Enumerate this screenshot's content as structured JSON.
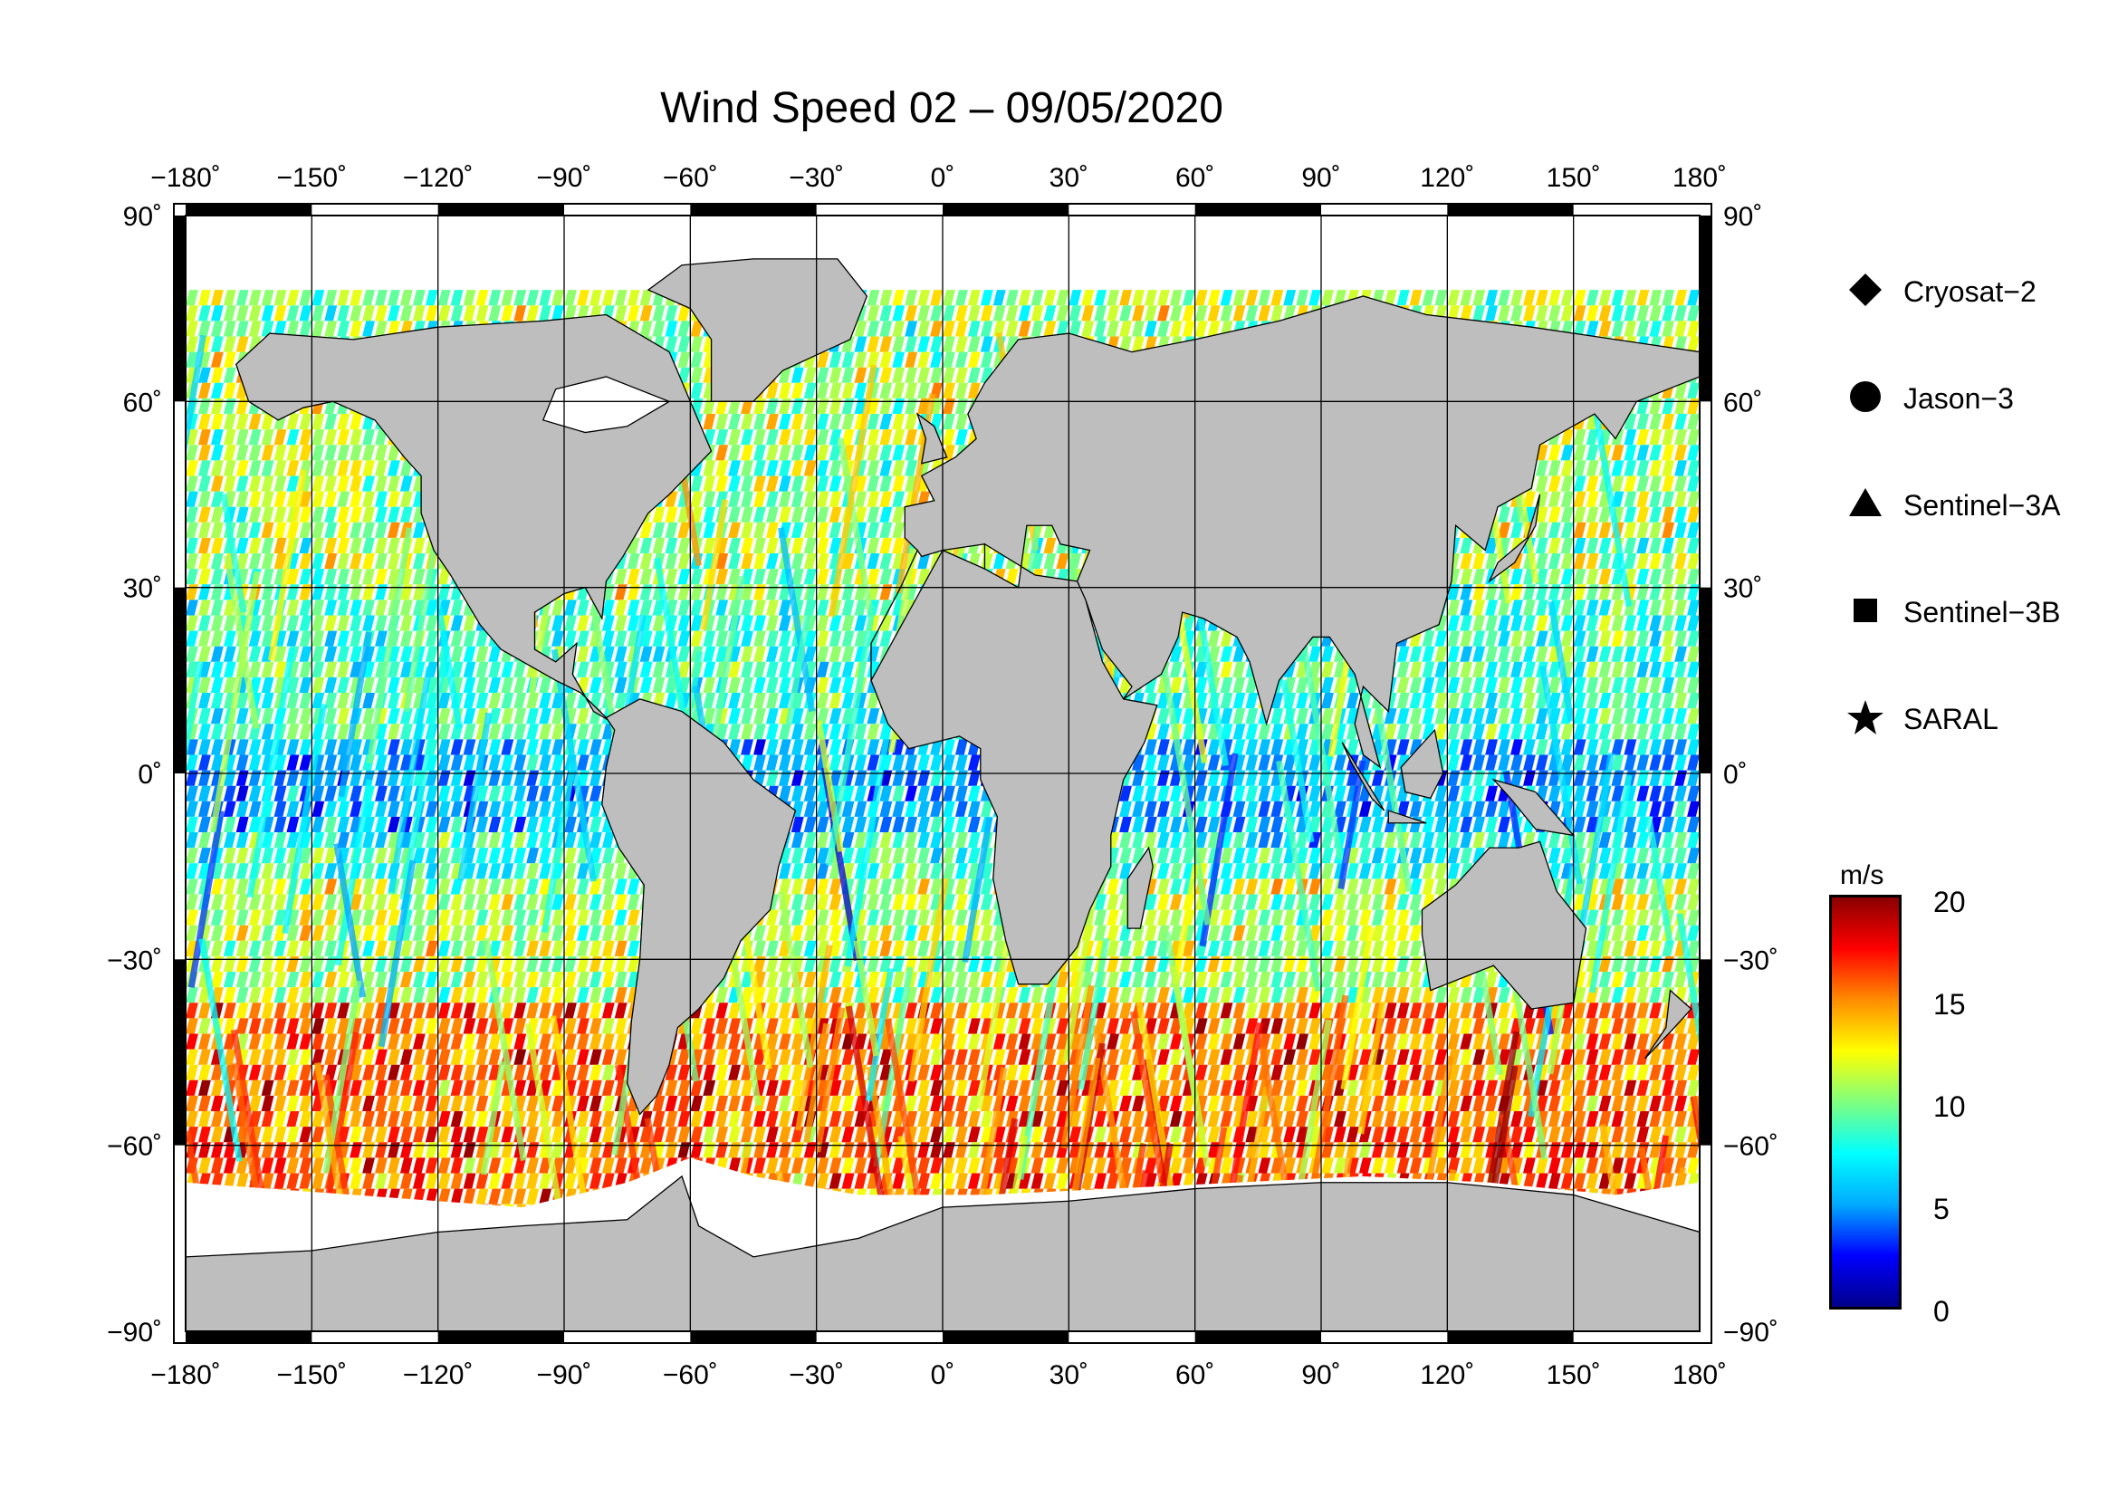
{
  "title": "Wind Speed 02 – 09/05/2020",
  "map": {
    "lon_ticks": [
      "−180˚",
      "−150˚",
      "−120˚",
      "−90˚",
      "−60˚",
      "−30˚",
      "0˚",
      "30˚",
      "60˚",
      "90˚",
      "120˚",
      "150˚",
      "180˚"
    ],
    "lat_ticks_left": [
      "90˚",
      "60˚",
      "30˚",
      "0˚",
      "−30˚",
      "−60˚",
      "−90˚"
    ],
    "lat_ticks_right": [
      "90˚",
      "60˚",
      "30˚",
      "0˚",
      "−30˚",
      "−60˚",
      "−90˚"
    ],
    "lon_range": [
      -180,
      180
    ],
    "lat_range": [
      -90,
      90
    ],
    "land_color": "#bebebe",
    "ice_color": "#ffffff"
  },
  "legend": {
    "items": [
      {
        "label": "Cryosat−2",
        "symbol": "diamond"
      },
      {
        "label": "Jason−3",
        "symbol": "circle"
      },
      {
        "label": "Sentinel−3A",
        "symbol": "triangle"
      },
      {
        "label": "Sentinel−3B",
        "symbol": "square"
      },
      {
        "label": "SARAL",
        "symbol": "star"
      }
    ]
  },
  "colorbar": {
    "unit": "m/s",
    "ticks": [
      "20",
      "15",
      "10",
      "5",
      "0"
    ],
    "range": [
      0,
      20
    ],
    "colors": [
      "#00008b",
      "#0000ff",
      "#00aaff",
      "#00ffff",
      "#7fff7f",
      "#ffff00",
      "#ff8c00",
      "#ff0000",
      "#8b0000"
    ]
  }
}
